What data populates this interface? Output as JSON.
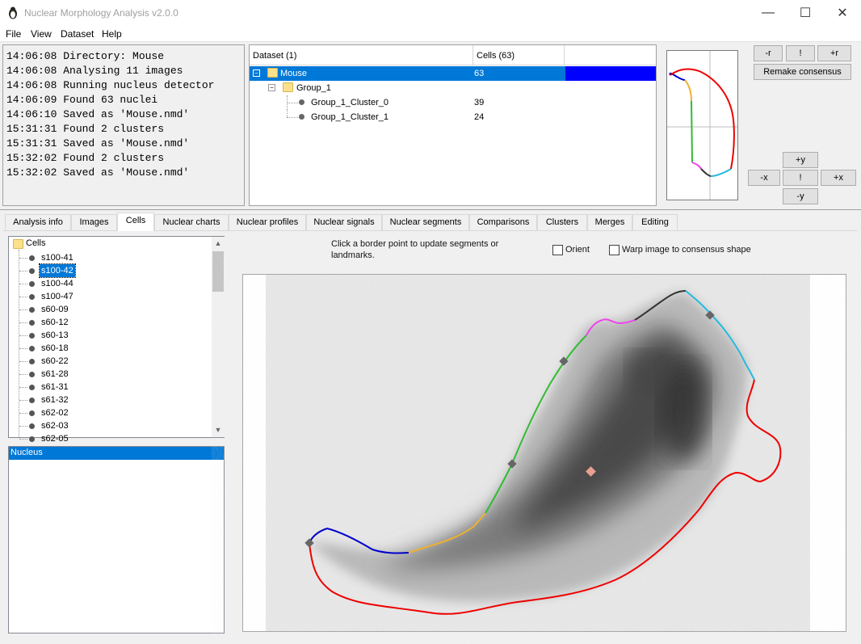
{
  "window": {
    "title": "Nuclear Morphology Analysis v2.0.0",
    "minimize_glyph": "—",
    "maximize_glyph": "☐",
    "close_glyph": "✕"
  },
  "menu": [
    "File",
    "View",
    "Dataset",
    "Help"
  ],
  "log": [
    "14:06:08 Directory: Mouse",
    "14:06:08 Analysing 11 images",
    "14:06:08 Running nucleus detector",
    "14:06:09 Found 63 nuclei",
    "14:06:10 Saved as 'Mouse.nmd'",
    "15:31:31 Found 2 clusters",
    "15:31:31 Saved as 'Mouse.nmd'",
    "15:32:02 Found 2 clusters",
    "15:32:02 Saved as 'Mouse.nmd'"
  ],
  "dataset_table": {
    "col_dataset": "Dataset (1)",
    "col_cells": "Cells (63)",
    "collapse_glyph": "−",
    "rows": [
      {
        "name": "Mouse",
        "count": "63"
      },
      {
        "name": "Group_1",
        "count": ""
      },
      {
        "name": "Group_1_Cluster_0",
        "count": "39"
      },
      {
        "name": "Group_1_Cluster_1",
        "count": "24"
      }
    ],
    "selection_color": "#0078d7",
    "dataset_color": "#0000ff"
  },
  "consensus_controls": {
    "minus_r": "-r",
    "bang_top": "!",
    "plus_r": "+r",
    "remake": "Remake consensus",
    "plus_y": "+y",
    "minus_x": "-x",
    "bang_mid": "!",
    "plus_x": "+x",
    "minus_y": "-y"
  },
  "tabs": [
    "Analysis info",
    "Images",
    "Cells",
    "Nuclear charts",
    "Nuclear profiles",
    "Nuclear signals",
    "Nuclear segments",
    "Comparisons",
    "Clusters",
    "Merges",
    "Editing"
  ],
  "active_tab": "Cells",
  "cells": {
    "root": "Cells",
    "items": [
      "s100-41",
      "s100-42",
      "s100-44",
      "s100-47",
      "s60-09",
      "s60-12",
      "s60-13",
      "s60-18",
      "s60-22",
      "s61-28",
      "s61-31",
      "s61-32",
      "s62-02",
      "s62-03",
      "s62-05"
    ],
    "selected": "s100-42",
    "scroll_up": "▲",
    "scroll_down": "▼"
  },
  "components": {
    "items": [
      "Nucleus"
    ]
  },
  "editor": {
    "instruction": "Click a border point to update segments or landmarks.",
    "orient_label": "Orient",
    "warp_label": "Warp image to consensus shape"
  },
  "segment_colors": {
    "blue": "#0000cc",
    "orange": "#f0b030",
    "green": "#33bb33",
    "magenta": "#ee44ee",
    "dark": "#333333",
    "cyan": "#22bbdd",
    "red": "#ee0000"
  }
}
